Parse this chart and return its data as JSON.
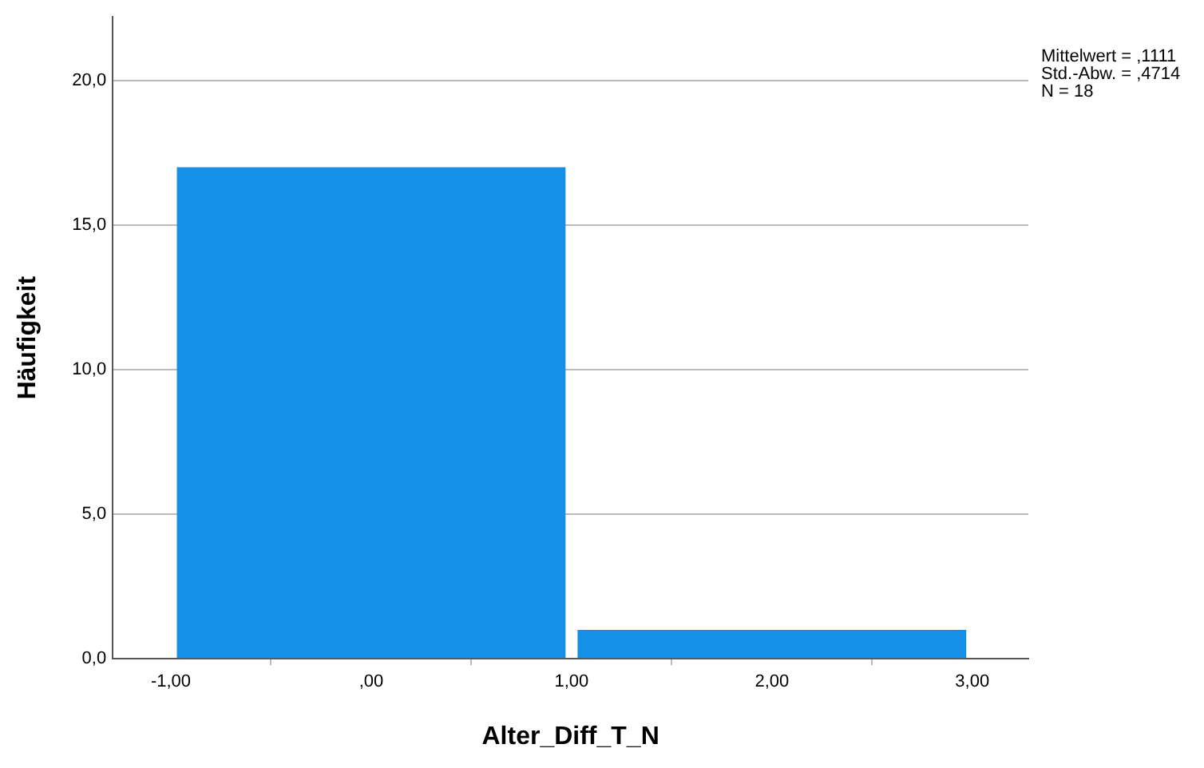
{
  "chart_data": {
    "type": "histogram",
    "xlabel": "Alter_Diff_T_N",
    "ylabel": "Häufigkeit",
    "bins": [
      -1,
      1,
      3
    ],
    "values": [
      17,
      1
    ],
    "color": "#1490e6",
    "xlim": [
      -1.29,
      3.28
    ],
    "xticks": [
      {
        "value": -1,
        "label": "-1,00"
      },
      {
        "value": 0,
        "label": ",00"
      },
      {
        "value": 1,
        "label": "1,00"
      },
      {
        "value": 2,
        "label": "2,00"
      },
      {
        "value": 3,
        "label": "3,00"
      }
    ],
    "ylim": [
      0,
      22.2
    ],
    "yticks": [
      {
        "value": 0,
        "label": "0,0"
      },
      {
        "value": 5,
        "label": "5,0"
      },
      {
        "value": 10,
        "label": "10,0"
      },
      {
        "value": 15,
        "label": "15,0"
      },
      {
        "value": 20,
        "label": "20,0"
      }
    ],
    "grid": "y",
    "annotations": [
      "Mittelwert = ,1111",
      "Std.-Abw. = ,4714",
      "N = 18"
    ]
  }
}
